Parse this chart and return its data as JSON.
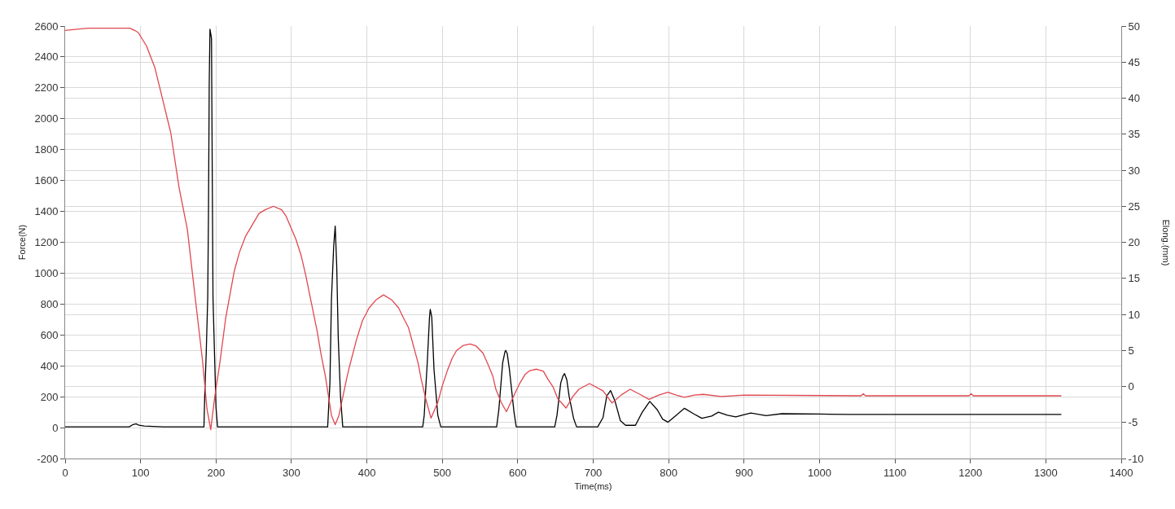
{
  "chart_data": {
    "type": "line",
    "xlabel": "Time(ms)",
    "ylabel": "Force(N)",
    "y2label": "Elong.(mm)",
    "xlim": [
      0,
      1400
    ],
    "xticks": [
      0,
      100,
      200,
      300,
      400,
      500,
      600,
      700,
      800,
      900,
      1000,
      1100,
      1200,
      1300,
      1400
    ],
    "ylim": [
      -200,
      2600
    ],
    "yticks": [
      -200,
      0,
      200,
      400,
      600,
      800,
      1000,
      1200,
      1400,
      1600,
      1800,
      2000,
      2200,
      2400,
      2600
    ],
    "y2lim": [
      -10,
      50
    ],
    "y2ticks": [
      -10,
      -5,
      0,
      5,
      10,
      15,
      20,
      25,
      30,
      35,
      40,
      45,
      50
    ],
    "grid": true,
    "series": [
      {
        "color": "#e0474f",
        "axis": "y2",
        "x": [
          0,
          10,
          30,
          86,
          92,
          97,
          108,
          119,
          130,
          140,
          151,
          162,
          172,
          182,
          188,
          193,
          198,
          205,
          213,
          224,
          231,
          239,
          257,
          265,
          276,
          287,
          293,
          306,
          313,
          319,
          325,
          334,
          339,
          345,
          353,
          358,
          363,
          373,
          377,
          386,
          394,
          403,
          412,
          422,
          433,
          442,
          448,
          455,
          461,
          468,
          472,
          478,
          485,
          494,
          500,
          507,
          513,
          519,
          528,
          537,
          545,
          554,
          560,
          567,
          571,
          578,
          585,
          597,
          603,
          610,
          616,
          625,
          634,
          640,
          647,
          653,
          664,
          673,
          681,
          695,
          713,
          725,
          737,
          749,
          762,
          774,
          787,
          799,
          810,
          821,
          834,
          846,
          870,
          900,
          1055,
          1058,
          1061,
          1198,
          1201,
          1204,
          1320
        ],
        "values": [
          49.4,
          49.5,
          49.7,
          49.7,
          49.4,
          49.1,
          47.2,
          44.2,
          39.5,
          35.2,
          27.6,
          21.8,
          12.7,
          3.7,
          -3.1,
          -6,
          -1.7,
          3.2,
          9.6,
          15.9,
          18.6,
          20.8,
          24,
          24.5,
          25,
          24.5,
          23.6,
          20.4,
          18.1,
          15.4,
          12.3,
          7.7,
          4.6,
          1.4,
          -4,
          -5.3,
          -4,
          1,
          2.8,
          6.4,
          9.1,
          10.9,
          12,
          12.7,
          12,
          10.9,
          9.6,
          8.2,
          5.9,
          3.2,
          1,
          -1.7,
          -4.4,
          -2.2,
          0.1,
          2.3,
          3.9,
          5,
          5.7,
          5.9,
          5.6,
          4.6,
          3.2,
          1.4,
          -0.4,
          -2.2,
          -3.5,
          -0.8,
          0.5,
          1.7,
          2.2,
          2.4,
          2.1,
          1,
          -0.1,
          -1.7,
          -3,
          -1.4,
          -0.4,
          0.4,
          -0.6,
          -2.3,
          -1.2,
          -0.4,
          -1.1,
          -1.8,
          -1.2,
          -0.8,
          -1.2,
          -1.5,
          -1.2,
          -1.1,
          -1.4,
          -1.2,
          -1.3,
          -1,
          -1.3,
          -1.3,
          -1,
          -1.3,
          -1.3
        ]
      },
      {
        "color": "#000000",
        "x": [
          0,
          85,
          90,
          94,
          98,
          105,
          130,
          184,
          185,
          187,
          189,
          190,
          191,
          192,
          194,
          195,
          196,
          198,
          200,
          202,
          348,
          351,
          353,
          356,
          358,
          360,
          362,
          365,
          368,
          474,
          476,
          480,
          483,
          484,
          486,
          489,
          494,
          498,
          572,
          575,
          580,
          583,
          584,
          586,
          589,
          595,
          598,
          649,
          652,
          657,
          660,
          662,
          665,
          668,
          674,
          678,
          706,
          713,
          718,
          723,
          729,
          736,
          743,
          756,
          765,
          775,
          785,
          792,
          799,
          810,
          821,
          833,
          844,
          857,
          866,
          878,
          889,
          909,
          929,
          950,
          1000,
          1040,
          1320
        ],
        "values": [
          5,
          5,
          20,
          25,
          15,
          10,
          5,
          5,
          200,
          480,
          840,
          1380,
          2230,
          2580,
          2520,
          1670,
          840,
          480,
          130,
          5,
          5,
          290,
          830,
          1175,
          1305,
          1050,
          585,
          205,
          5,
          5,
          80,
          420,
          715,
          765,
          715,
          375,
          80,
          5,
          5,
          120,
          420,
          490,
          500,
          480,
          375,
          100,
          5,
          5,
          80,
          290,
          335,
          350,
          310,
          205,
          60,
          5,
          5,
          65,
          205,
          240,
          170,
          45,
          15,
          15,
          100,
          170,
          115,
          55,
          35,
          80,
          125,
          90,
          60,
          75,
          100,
          80,
          70,
          95,
          78,
          90,
          88,
          85,
          85
        ]
      }
    ]
  }
}
